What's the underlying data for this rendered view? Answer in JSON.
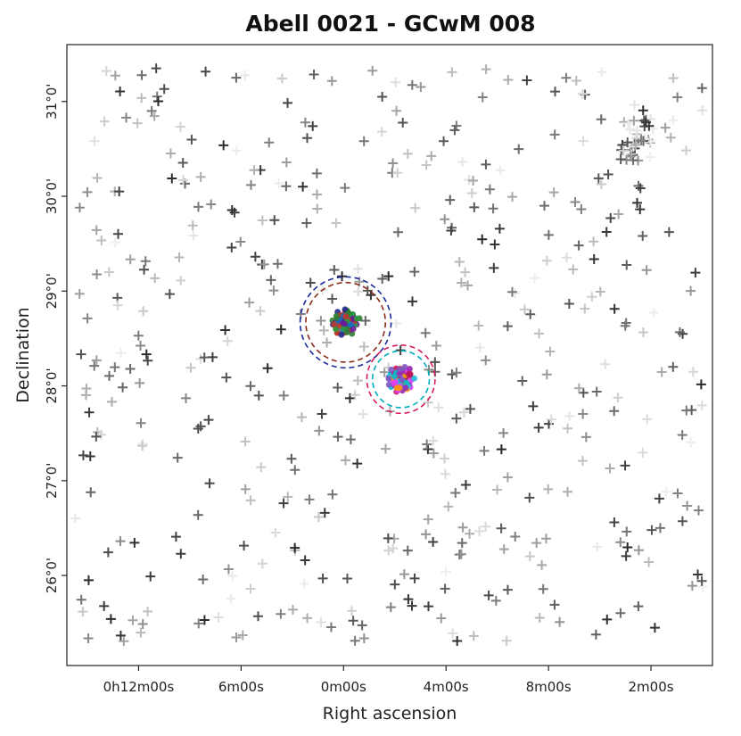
{
  "chart_data": {
    "type": "scatter",
    "title": "Abell 0021 - GCwM 008",
    "xlabel": "Right ascension",
    "ylabel": "Declination",
    "x_tick_labels": [
      "2m00s",
      "8m00s",
      "4m00s",
      "0m00s",
      "6m00s",
      "0h12m00s"
    ],
    "y_tick_labels": [
      "26°0'",
      "27°0'",
      "28°0'",
      "29°0'",
      "30°0'",
      "31°0'"
    ],
    "x_tick_positions_data": [
      -14,
      -9,
      -4,
      1,
      6,
      11
    ],
    "y_tick_positions_data": [
      26,
      27,
      28,
      29,
      30,
      31
    ],
    "xlim": [
      -17,
      14.5
    ],
    "ylim": [
      25.05,
      31.6
    ],
    "x_reversed": true,
    "grid": false,
    "background_sources": {
      "marker": "plus",
      "count": 520,
      "density_cluster_center": [
        -13.3,
        30.6
      ],
      "note_color": "grey shades"
    },
    "groups": [
      {
        "center": [
          0.9,
          28.67
        ],
        "color_points": [
          "#1f2a8a",
          "#1a6fc0",
          "#2a9d3c",
          "#c0392b",
          "#6a1b9a",
          "#2e7d32"
        ],
        "circles": [
          {
            "radius_deg": 0.48,
            "color": "#1a2a9a",
            "style": "dashed"
          },
          {
            "radius_deg": 0.42,
            "color": "#8b2a1a",
            "style": "dashed"
          }
        ]
      },
      {
        "center": [
          -1.8,
          28.07
        ],
        "color_points": [
          "#e040fb",
          "#00bcd4",
          "#ff9800",
          "#9c27b0",
          "#c2185b",
          "#7e57c2",
          "#26c6da"
        ],
        "circles": [
          {
            "radius_deg": 0.36,
            "color": "#d81b60",
            "style": "dashed"
          },
          {
            "radius_deg": 0.3,
            "color": "#00acc1",
            "style": "dashed"
          }
        ]
      }
    ]
  }
}
